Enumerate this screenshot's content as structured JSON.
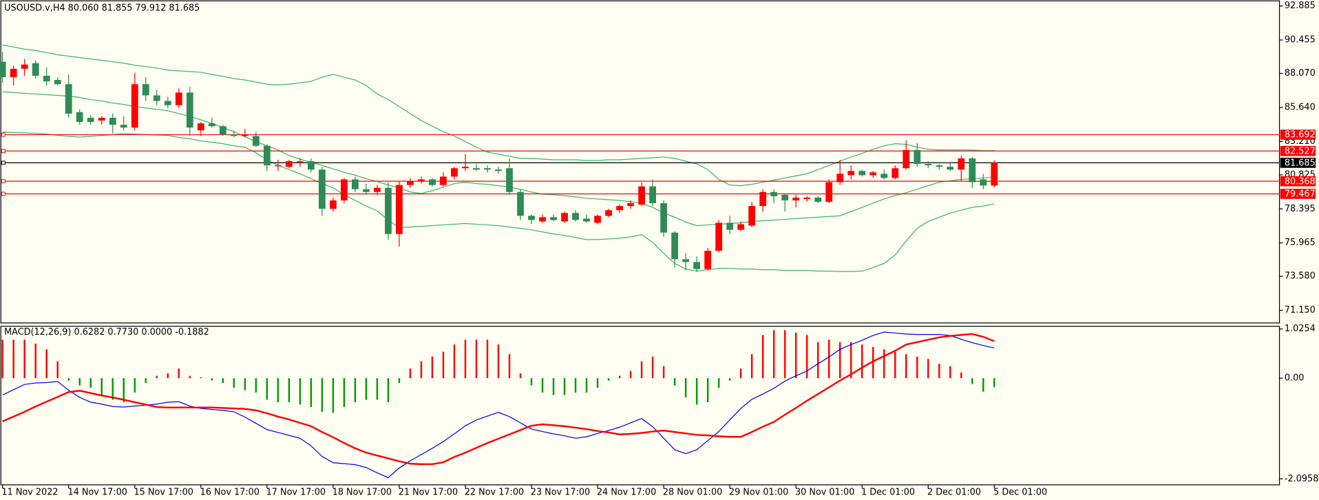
{
  "chart_data": [
    {
      "type": "candlestick",
      "title": "USOUSD.v,H4  80.060 81.855 79.912 81.685",
      "categories": [
        "11 Nov 2022",
        null,
        null,
        null,
        null,
        null,
        "14 Nov 17:00",
        null,
        null,
        null,
        null,
        null,
        "15 Nov 17:00",
        null,
        null,
        null,
        null,
        null,
        "16 Nov 17:00",
        null,
        null,
        null,
        null,
        null,
        "17 Nov 17:00",
        null,
        null,
        null,
        null,
        null,
        "18 Nov 17:00",
        null,
        null,
        null,
        null,
        null,
        "21 Nov 17:00",
        null,
        null,
        null,
        null,
        null,
        "22 Nov 17:00",
        null,
        null,
        null,
        null,
        null,
        "23 Nov 17:00",
        null,
        null,
        null,
        null,
        null,
        "24 Nov 17:00",
        null,
        null,
        null,
        null,
        null,
        "28 Nov 01:00",
        null,
        null,
        null,
        null,
        null,
        "29 Nov 01:00",
        null,
        null,
        null,
        null,
        null,
        "30 Nov 01:00",
        null,
        null,
        null,
        null,
        null,
        "1 Dec 01:00",
        null,
        null,
        null,
        null,
        null,
        "2 Dec 01:00",
        null,
        null,
        null,
        null,
        null,
        "5 Dec 01:00"
      ],
      "open": [
        88.9,
        87.8,
        88.4,
        88.8,
        87.9,
        87.6,
        87.3,
        85.3,
        84.9,
        84.7,
        84.9,
        84.4,
        84.2,
        87.3,
        86.5,
        86.1,
        85.8,
        86.7,
        84.0,
        84.5,
        84.3,
        83.7,
        83.6,
        83.6,
        82.9,
        81.5,
        81.4,
        81.8,
        81.8,
        81.2,
        78.4,
        79.0,
        80.5,
        79.8,
        79.6,
        79.9,
        76.6,
        80.1,
        80.4,
        80.5,
        80.1,
        80.7,
        81.3,
        81.3,
        81.3,
        81.2,
        81.3,
        79.6,
        77.9,
        77.5,
        77.8,
        77.5,
        78.1,
        77.7,
        77.4,
        77.9,
        78.3,
        78.6,
        78.7,
        80.0,
        78.8,
        76.7,
        74.8,
        74.6,
        74.1,
        75.4,
        77.4,
        76.9,
        77.2,
        78.6,
        79.6,
        79.4,
        79.0,
        79.1,
        79.2,
        78.9,
        80.3,
        80.8,
        81.1,
        80.8,
        80.9,
        80.6,
        81.3,
        82.6,
        81.6,
        81.5,
        81.4,
        81.2,
        82.0,
        80.5,
        80.06
      ],
      "high": [
        89.6,
        88.6,
        89.1,
        89.0,
        88.5,
        87.8,
        88.0,
        85.5,
        85.1,
        85.0,
        85.2,
        85.0,
        88.1,
        87.8,
        86.9,
        86.4,
        87.0,
        87.1,
        84.6,
        84.9,
        84.4,
        84.0,
        84.1,
        83.9,
        83.0,
        81.9,
        81.9,
        82.0,
        82.0,
        81.4,
        79.2,
        80.6,
        80.7,
        80.2,
        80.1,
        80.3,
        80.4,
        80.6,
        80.7,
        80.6,
        81.0,
        81.4,
        82.3,
        81.6,
        81.5,
        81.4,
        82.0,
        79.8,
        78.0,
        78.0,
        78.0,
        78.2,
        78.3,
        78.0,
        78.0,
        78.4,
        78.7,
        79.0,
        80.3,
        80.5,
        79.0,
        76.8,
        75.2,
        75.0,
        75.6,
        77.6,
        77.9,
        77.5,
        78.9,
        79.8,
        79.8,
        79.5,
        79.4,
        79.3,
        79.3,
        80.5,
        81.9,
        81.5,
        81.2,
        81.1,
        81.2,
        81.5,
        83.3,
        83.1,
        81.8,
        81.6,
        81.7,
        82.2,
        82.1,
        80.9,
        81.855
      ],
      "low": [
        87.4,
        87.2,
        87.9,
        87.7,
        87.2,
        87.2,
        84.9,
        84.4,
        84.4,
        84.4,
        83.8,
        84.0,
        84.0,
        86.1,
        85.8,
        85.6,
        85.6,
        83.6,
        83.6,
        84.2,
        83.6,
        83.5,
        83.5,
        82.8,
        81.1,
        81.1,
        81.3,
        81.4,
        81.0,
        77.9,
        78.2,
        78.8,
        79.6,
        79.4,
        79.4,
        76.2,
        75.7,
        79.9,
        80.2,
        80.0,
        80.0,
        80.5,
        81.1,
        81.1,
        81.0,
        80.9,
        79.4,
        77.6,
        77.3,
        77.4,
        77.5,
        77.4,
        77.5,
        77.4,
        77.3,
        77.8,
        78.1,
        78.4,
        78.6,
        78.6,
        76.4,
        74.2,
        74.0,
        73.9,
        74.0,
        75.3,
        76.6,
        76.8,
        77.1,
        78.2,
        78.8,
        78.2,
        78.5,
        78.9,
        78.8,
        78.8,
        80.1,
        80.5,
        80.7,
        80.6,
        80.5,
        80.5,
        81.2,
        81.4,
        81.3,
        81.2,
        81.1,
        80.4,
        79.9,
        79.8,
        79.912
      ],
      "close": [
        87.8,
        88.4,
        88.7,
        87.9,
        87.5,
        87.3,
        85.2,
        84.6,
        84.6,
        84.9,
        84.4,
        84.2,
        87.3,
        86.5,
        86.1,
        85.8,
        86.7,
        84.2,
        84.5,
        84.3,
        83.7,
        83.6,
        83.7,
        82.9,
        81.5,
        81.5,
        81.8,
        81.8,
        81.2,
        78.4,
        79.0,
        80.5,
        79.8,
        79.6,
        79.9,
        76.6,
        80.1,
        80.4,
        80.5,
        80.1,
        80.7,
        81.3,
        81.4,
        81.2,
        81.2,
        81.1,
        79.6,
        77.9,
        77.6,
        77.8,
        77.6,
        78.1,
        77.6,
        77.5,
        77.9,
        78.3,
        78.6,
        78.8,
        80.0,
        78.8,
        76.7,
        74.8,
        74.6,
        74.1,
        75.4,
        77.4,
        76.9,
        77.3,
        78.6,
        79.6,
        79.3,
        79.0,
        79.2,
        79.2,
        78.9,
        80.3,
        80.9,
        81.1,
        80.8,
        81.0,
        80.6,
        81.3,
        82.6,
        81.6,
        81.5,
        81.4,
        81.2,
        82.0,
        80.3,
        80.06,
        81.685
      ],
      "up_color": "#ff0000",
      "down_color": "#2e8b57",
      "bands": [
        {
          "color": "#3cb371",
          "values": [
            90.1,
            89.95,
            89.8,
            89.7,
            89.55,
            89.4,
            89.3,
            89.2,
            89.1,
            89.0,
            88.9,
            88.8,
            88.65,
            88.55,
            88.45,
            88.3,
            88.25,
            88.2,
            88.15,
            88.0,
            87.85,
            87.7,
            87.6,
            87.45,
            87.3,
            87.25,
            87.3,
            87.4,
            87.5,
            87.8,
            88.0,
            87.8,
            87.6,
            87.2,
            86.6,
            86.2,
            85.7,
            85.2,
            84.7,
            84.3,
            83.9,
            83.6,
            83.2,
            82.8,
            82.45,
            82.3,
            82.15,
            82.0,
            82.0,
            81.95,
            81.9,
            81.9,
            81.9,
            81.85,
            81.85,
            81.9,
            81.9,
            81.95,
            82.0,
            82.05,
            82.1,
            82.0,
            81.8,
            81.6,
            81.2,
            80.5,
            80.1,
            80.05,
            80.15,
            80.3,
            80.45,
            80.6,
            80.75,
            80.9,
            81.2,
            81.5,
            81.8,
            82.1,
            82.35,
            82.65,
            82.9,
            83.05,
            83.0,
            82.8,
            82.65,
            82.6,
            82.6,
            82.6,
            82.6,
            82.55,
            82.55
          ]
        },
        {
          "color": "#3cb371",
          "values": [
            86.76,
            86.7,
            86.65,
            86.6,
            86.55,
            86.5,
            86.45,
            86.35,
            86.2,
            86.1,
            85.95,
            85.85,
            85.7,
            85.6,
            85.5,
            85.4,
            85.2,
            85.0,
            84.75,
            84.5,
            84.2,
            83.9,
            83.55,
            83.2,
            82.9,
            82.6,
            82.2,
            81.95,
            81.7,
            81.5,
            81.25,
            81.0,
            80.8,
            80.55,
            80.35,
            80.1,
            79.9,
            79.6,
            79.5,
            79.7,
            79.95,
            80.2,
            80.3,
            80.2,
            80.15,
            80.05,
            79.95,
            79.8,
            79.6,
            79.45,
            79.4,
            79.35,
            79.25,
            79.15,
            79.1,
            79.05,
            79.0,
            78.9,
            78.8,
            78.5,
            78.1,
            77.8,
            77.45,
            77.2,
            77.25,
            77.3,
            77.35,
            77.4,
            77.5,
            77.55,
            77.6,
            77.65,
            77.7,
            77.75,
            77.8,
            77.85,
            77.9,
            78.2,
            78.5,
            78.8,
            79.1,
            79.35,
            79.55,
            79.8,
            80.05,
            80.3,
            80.4,
            80.5,
            80.55,
            80.6,
            80.65
          ]
        },
        {
          "color": "#3cb371",
          "values": [
            83.88,
            83.85,
            83.82,
            83.78,
            83.74,
            83.65,
            83.58,
            83.52,
            83.58,
            83.64,
            83.7,
            83.76,
            83.73,
            83.7,
            83.67,
            83.64,
            83.5,
            83.4,
            83.25,
            83.15,
            83.05,
            82.9,
            82.8,
            82.4,
            81.9,
            81.5,
            81.2,
            80.9,
            80.55,
            80.2,
            79.9,
            79.4,
            79.0,
            78.6,
            78.25,
            77.6,
            77.05,
            77.1,
            77.15,
            77.2,
            77.25,
            77.3,
            77.35,
            77.3,
            77.25,
            77.2,
            77.1,
            77.0,
            76.9,
            76.75,
            76.6,
            76.5,
            76.35,
            76.2,
            76.2,
            76.25,
            76.3,
            76.4,
            76.55,
            76.0,
            75.2,
            74.5,
            74.1,
            73.95,
            74.05,
            74.15,
            74.15,
            74.1,
            74.1,
            74.05,
            74.05,
            74.0,
            74.0,
            74.0,
            73.95,
            73.95,
            73.92,
            73.92,
            73.95,
            74.2,
            74.5,
            75.1,
            76.1,
            77.0,
            77.5,
            77.8,
            78.1,
            78.3,
            78.5,
            78.6,
            78.75
          ]
        }
      ],
      "hlines": [
        {
          "value": 83.692,
          "color": "#ff0000"
        },
        {
          "value": 82.527,
          "color": "#ff0000"
        },
        {
          "value": 81.685,
          "color": "#000000"
        },
        {
          "value": 80.368,
          "color": "#ff0000"
        },
        {
          "value": 79.467,
          "color": "#ff0000"
        }
      ],
      "ylim": [
        70.25,
        93.25
      ],
      "yticks": [
        92.885,
        90.455,
        {
          "value": 88.07,
          "label": "88.070"
        },
        {
          "value": 85.64,
          "label": "85.640"
        },
        {
          "value": 83.21,
          "label": "83.210"
        },
        80.825,
        78.395,
        75.965,
        {
          "value": 73.58,
          "label": "73.580"
        },
        {
          "value": 71.15,
          "label": "71.150"
        }
      ]
    },
    {
      "type": "macd",
      "title": "MACD(12,26,9) 0.6282 0.7730 0.0000 -0.1882",
      "histogram": [
        0.8,
        0.8,
        0.8,
        0.72,
        0.6,
        0.35,
        -0.05,
        -0.15,
        -0.2,
        -0.35,
        -0.45,
        -0.5,
        -0.3,
        -0.1,
        0.05,
        0.1,
        0.2,
        0.05,
        0.02,
        -0.05,
        -0.1,
        -0.2,
        -0.25,
        -0.3,
        -0.45,
        -0.5,
        -0.5,
        -0.55,
        -0.6,
        -0.7,
        -0.72,
        -0.6,
        -0.5,
        -0.45,
        -0.45,
        -0.5,
        -0.1,
        0.2,
        0.35,
        0.45,
        0.55,
        0.7,
        0.8,
        0.8,
        0.8,
        0.7,
        0.5,
        0.1,
        -0.15,
        -0.3,
        -0.35,
        -0.35,
        -0.3,
        -0.3,
        -0.2,
        -0.05,
        0.05,
        0.15,
        0.35,
        0.45,
        0.25,
        -0.15,
        -0.4,
        -0.55,
        -0.5,
        -0.2,
        -0.05,
        0.2,
        0.5,
        0.9,
        1.0,
        1.0,
        0.95,
        0.9,
        0.75,
        0.8,
        0.75,
        0.75,
        0.7,
        0.65,
        0.6,
        0.55,
        0.5,
        0.45,
        0.4,
        0.3,
        0.25,
        0.12,
        -0.12,
        -0.28,
        -0.1882
      ],
      "up_color": "#ff0000",
      "down_color": "#009900",
      "series": [
        {
          "color": "#0000ff",
          "width": 1,
          "values": [
            -0.35,
            -0.24,
            -0.13,
            -0.1,
            -0.09,
            -0.07,
            -0.25,
            -0.4,
            -0.5,
            -0.54,
            -0.59,
            -0.6,
            -0.58,
            -0.56,
            -0.54,
            -0.5,
            -0.49,
            -0.58,
            -0.63,
            -0.65,
            -0.67,
            -0.7,
            -0.81,
            -0.94,
            -1.07,
            -1.13,
            -1.19,
            -1.25,
            -1.41,
            -1.63,
            -1.76,
            -1.78,
            -1.8,
            -1.86,
            -1.97,
            -2.07,
            -1.87,
            -1.72,
            -1.59,
            -1.46,
            -1.32,
            -1.16,
            -0.99,
            -0.87,
            -0.79,
            -0.71,
            -0.8,
            -0.93,
            -1.06,
            -1.11,
            -1.16,
            -1.2,
            -1.25,
            -1.22,
            -1.15,
            -1.09,
            -1.02,
            -0.93,
            -0.84,
            -1.01,
            -1.25,
            -1.49,
            -1.57,
            -1.49,
            -1.3,
            -1.11,
            -0.87,
            -0.63,
            -0.44,
            -0.33,
            -0.21,
            -0.06,
            0.05,
            0.15,
            0.3,
            0.44,
            0.6,
            0.7,
            0.79,
            0.89,
            0.96,
            0.94,
            0.92,
            0.91,
            0.91,
            0.91,
            0.89,
            0.81,
            0.74,
            0.68,
            0.6282
          ]
        },
        {
          "color": "#ff0000",
          "width": 2,
          "values": [
            -0.9,
            -0.8,
            -0.7,
            -0.59,
            -0.49,
            -0.39,
            -0.29,
            -0.26,
            -0.31,
            -0.36,
            -0.4,
            -0.45,
            -0.5,
            -0.55,
            -0.6,
            -0.61,
            -0.61,
            -0.61,
            -0.61,
            -0.61,
            -0.62,
            -0.63,
            -0.64,
            -0.67,
            -0.73,
            -0.8,
            -0.86,
            -0.93,
            -1.0,
            -1.12,
            -1.23,
            -1.35,
            -1.46,
            -1.55,
            -1.61,
            -1.67,
            -1.73,
            -1.78,
            -1.79,
            -1.79,
            -1.75,
            -1.64,
            -1.55,
            -1.45,
            -1.35,
            -1.26,
            -1.17,
            -1.08,
            -0.99,
            -0.96,
            -0.98,
            -1.0,
            -1.03,
            -1.06,
            -1.1,
            -1.13,
            -1.17,
            -1.16,
            -1.14,
            -1.11,
            -1.09,
            -1.12,
            -1.15,
            -1.18,
            -1.19,
            -1.21,
            -1.22,
            -1.22,
            -1.12,
            -1.01,
            -0.91,
            -0.76,
            -0.62,
            -0.47,
            -0.33,
            -0.19,
            -0.05,
            0.08,
            0.22,
            0.35,
            0.46,
            0.57,
            0.7,
            0.75,
            0.8,
            0.85,
            0.88,
            0.9,
            0.92,
            0.86,
            0.773
          ]
        }
      ],
      "ylim": [
        -2.22,
        1.08
      ],
      "yticks": [
        1.0254,
        {
          "value": 0,
          "label": "0.00"
        },
        -2.0958
      ]
    }
  ]
}
